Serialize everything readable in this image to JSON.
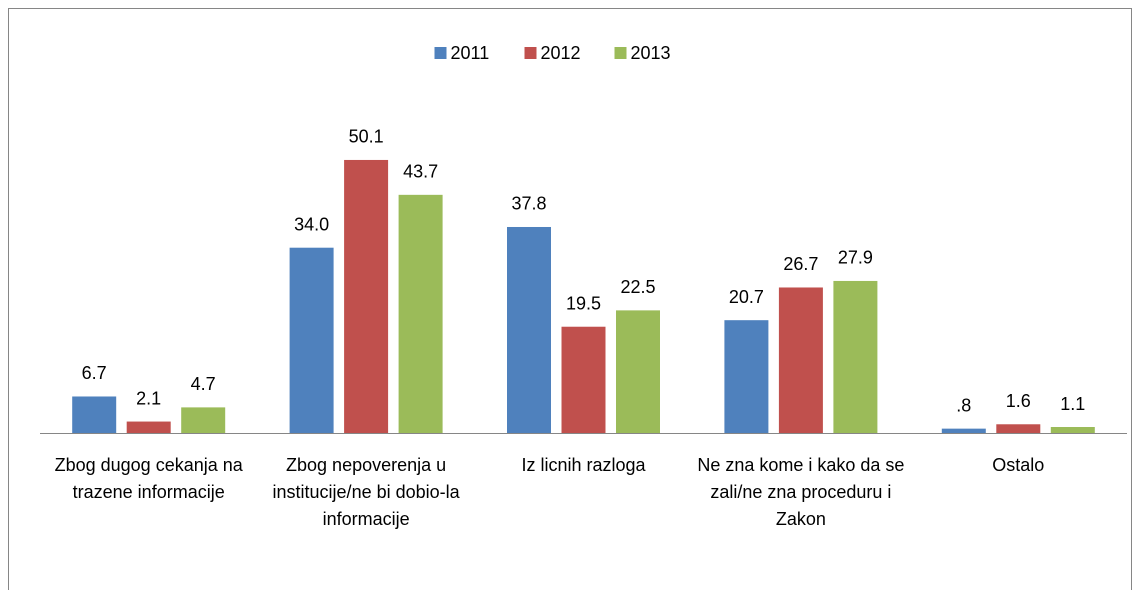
{
  "chart_data": {
    "type": "bar",
    "categories": [
      "Zbog dugog cekanja na trazene informacije",
      "Zbog nepoverenja u institucije/ne bi dobio-la informacije",
      "Iz licnih razloga",
      "Ne zna kome i kako da se zali/ne zna proceduru i Zakon",
      "Ostalo"
    ],
    "series": [
      {
        "name": "2011",
        "color": "#4f81bd",
        "values": [
          6.7,
          34.0,
          37.8,
          20.7,
          0.8
        ],
        "value_labels": [
          "6.7",
          "34.0",
          "37.8",
          "20.7",
          ".8"
        ]
      },
      {
        "name": "2012",
        "color": "#c0504d",
        "values": [
          2.1,
          50.1,
          19.5,
          26.7,
          1.6
        ],
        "value_labels": [
          "2.1",
          "50.1",
          "19.5",
          "26.7",
          "1.6"
        ]
      },
      {
        "name": "2013",
        "color": "#9bbb59",
        "values": [
          4.7,
          43.7,
          22.5,
          27.9,
          1.1
        ],
        "value_labels": [
          "4.7",
          "43.7",
          "22.5",
          "27.9",
          "1.1"
        ]
      }
    ],
    "legend": "top"
  }
}
